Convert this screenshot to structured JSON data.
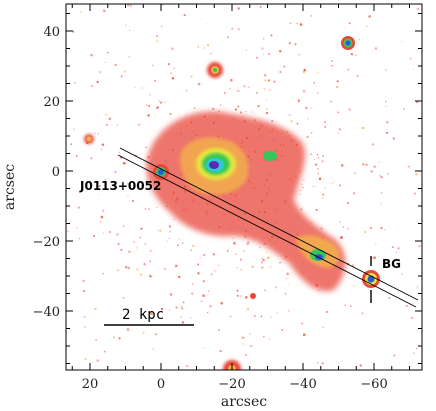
{
  "axes": {
    "xlabel": "arcsec",
    "ylabel": "arcsec",
    "x_ticks": [
      "20",
      "0",
      "−20",
      "−40",
      "−60"
    ],
    "y_ticks": [
      "40",
      "20",
      "0",
      "−20",
      "−40"
    ]
  },
  "annotations": {
    "target": "J0113+0052",
    "background": "BG",
    "scalebar": "2 kpc"
  },
  "colors": {
    "outer": "#e8483a",
    "mid": "#f2b04a",
    "yellow": "#e8e83c",
    "green": "#34c85a",
    "cyan": "#2ec8d8",
    "blue": "#2a5ad8",
    "core": "#5a2ab0"
  }
}
